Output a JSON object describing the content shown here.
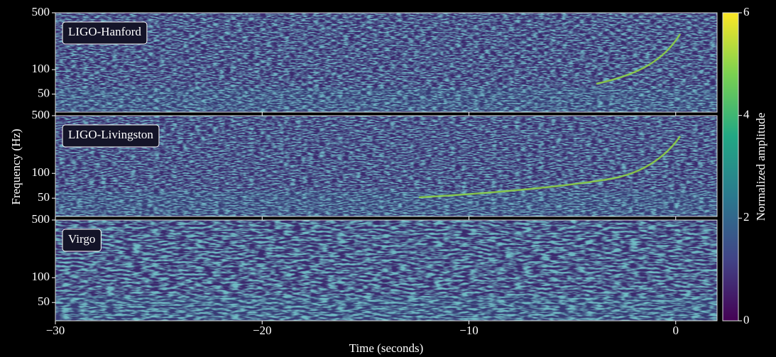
{
  "chart_data": [
    {
      "type": "spectrogram",
      "title": "LIGO-Hanford",
      "xlim": [
        -30,
        2
      ],
      "ylim": [
        30,
        500
      ],
      "yticks": [
        50,
        100,
        500
      ],
      "log_scale": true
    },
    {
      "type": "spectrogram",
      "title": "LIGO-Livingston",
      "xlim": [
        -30,
        2
      ],
      "ylim": [
        30,
        500
      ],
      "yticks": [
        50,
        100,
        500
      ],
      "log_scale": true,
      "ylabel": "Frequency (Hz)"
    },
    {
      "type": "spectrogram",
      "title": "Virgo",
      "xlim": [
        -30,
        2
      ],
      "ylim": [
        30,
        500
      ],
      "yticks": [
        50,
        100,
        500
      ],
      "log_scale": true,
      "xlabel": "Time (seconds)",
      "xticks": [
        {
          "value": -30,
          "label": "−30"
        },
        {
          "value": -20,
          "label": "−20"
        },
        {
          "value": -10,
          "label": "−10"
        },
        0
      ]
    }
  ],
  "colorbar": {
    "label": "Normalized amplitude",
    "lim": [
      0,
      6
    ],
    "ticks": [
      0,
      2,
      4,
      6
    ],
    "colormap": [
      "#440154",
      "#414487",
      "#2a788e",
      "#22a884",
      "#7ad151",
      "#fde725"
    ]
  }
}
